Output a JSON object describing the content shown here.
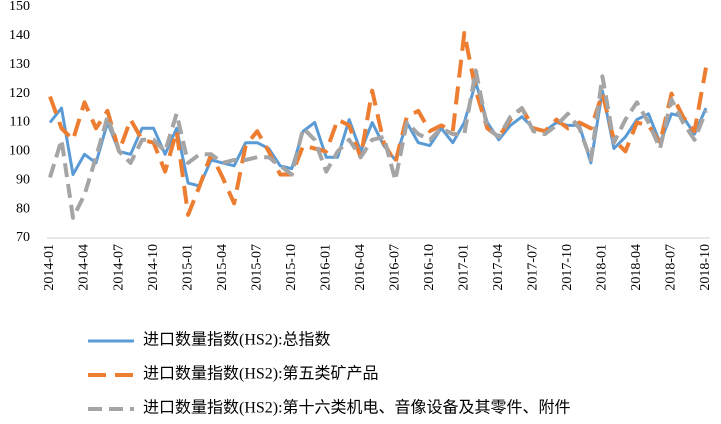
{
  "chart_data": {
    "type": "line",
    "categories": [
      "2014-01",
      null,
      null,
      "2014-04",
      null,
      null,
      "2014-07",
      null,
      null,
      "2014-10",
      null,
      null,
      "2015-01",
      null,
      null,
      "2015-04",
      null,
      null,
      "2015-07",
      null,
      null,
      "2015-10",
      null,
      null,
      "2016-01",
      null,
      null,
      "2016-04",
      null,
      null,
      "2016-07",
      null,
      null,
      "2016-10",
      null,
      null,
      "2017-01",
      null,
      null,
      "2017-04",
      null,
      null,
      "2017-07",
      null,
      null,
      "2017-10",
      null,
      null,
      "2018-01",
      null,
      null,
      "2018-04",
      null,
      null,
      "2018-07",
      null,
      null,
      "2018-10"
    ],
    "series": [
      {
        "name": "进口数量指数(HS2):总指数",
        "color": "#5b9bd5",
        "values": [
          110,
          115,
          92,
          99,
          96,
          110,
          100,
          99,
          108,
          108,
          99,
          108,
          89,
          88,
          97,
          96,
          95,
          103,
          103,
          101,
          95,
          94,
          107,
          110,
          98,
          98,
          111,
          100,
          110,
          102,
          97,
          110,
          103,
          102,
          108,
          103,
          110,
          124,
          110,
          104,
          109,
          112,
          108,
          107,
          110,
          109,
          109,
          96,
          121,
          101,
          105,
          111,
          113,
          103,
          113,
          112,
          106,
          115
        ]
      },
      {
        "name": "进口数量指数(HS2):第五类矿产品",
        "color": "#ed7d31",
        "values": [
          119,
          108,
          104,
          117,
          108,
          114,
          100,
          111,
          104,
          103,
          93,
          107,
          78,
          88,
          99,
          91,
          82,
          102,
          107,
          100,
          92,
          92,
          102,
          101,
          100,
          111,
          109,
          98,
          121,
          103,
          96,
          112,
          114,
          107,
          109,
          107,
          141,
          121,
          108,
          105,
          111,
          115,
          108,
          107,
          111,
          108,
          110,
          108,
          120,
          104,
          100,
          110,
          109,
          103,
          120,
          112,
          107,
          129
        ]
      },
      {
        "name": "进口数量指数(HS2):第十六类机电、音像设备及其零件、附件",
        "color": "#a5a5a5",
        "values": [
          91,
          104,
          77,
          85,
          98,
          112,
          100,
          96,
          104,
          104,
          100,
          113,
          96,
          99,
          99,
          96,
          97,
          97,
          98,
          98,
          95,
          92,
          108,
          104,
          93,
          100,
          104,
          98,
          104,
          105,
          90,
          110,
          106,
          104,
          108,
          106,
          106,
          128,
          108,
          105,
          112,
          115,
          107,
          106,
          109,
          113,
          108,
          97,
          126,
          103,
          111,
          117,
          110,
          101,
          118,
          110,
          104,
          114
        ]
      }
    ],
    "ylim": [
      70,
      150
    ],
    "yticks": [
      70,
      80,
      90,
      100,
      110,
      120,
      130,
      140,
      150
    ],
    "grid": false
  }
}
